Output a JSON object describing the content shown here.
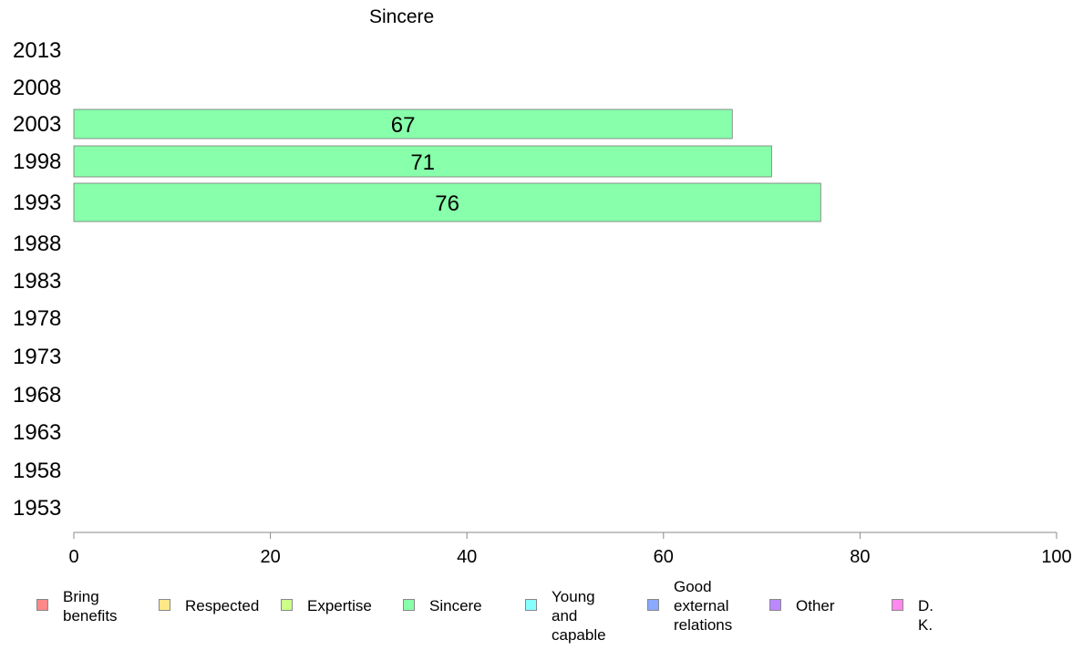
{
  "chart_data": {
    "type": "bar",
    "orientation": "horizontal",
    "title": "Sincere",
    "xlabel": "",
    "ylabel": "",
    "xlim": [
      0,
      100
    ],
    "x_ticks": [
      "0",
      "20",
      "40",
      "60",
      "80",
      "100"
    ],
    "categories": [
      "2013",
      "2008",
      "2003",
      "1998",
      "1993",
      "1988",
      "1983",
      "1978",
      "1973",
      "1968",
      "1963",
      "1958",
      "1953"
    ],
    "series": [
      {
        "name": "Sincere",
        "color": "#88ffaa",
        "values": [
          null,
          null,
          67,
          71,
          76,
          null,
          null,
          null,
          null,
          null,
          null,
          null,
          null
        ],
        "labels": [
          "",
          "",
          "67",
          "71",
          "76",
          "",
          "",
          "",
          "",
          "",
          "",
          "",
          ""
        ]
      }
    ],
    "grid": false,
    "legend_position": "bottom",
    "legend": [
      {
        "label": "Bring\nbenefits",
        "color": "#ff8888"
      },
      {
        "label": "Respected",
        "color": "#ffe888"
      },
      {
        "label": "Expertise",
        "color": "#ccff88"
      },
      {
        "label": "Sincere",
        "color": "#88ffaa"
      },
      {
        "label": "Young and\ncapable",
        "color": "#88ffff"
      },
      {
        "label": "Good\nexternal\nrelations",
        "color": "#88aaff"
      },
      {
        "label": "Other",
        "color": "#bb88ff"
      },
      {
        "label": "D. K.",
        "color": "#ff88ee"
      }
    ]
  }
}
